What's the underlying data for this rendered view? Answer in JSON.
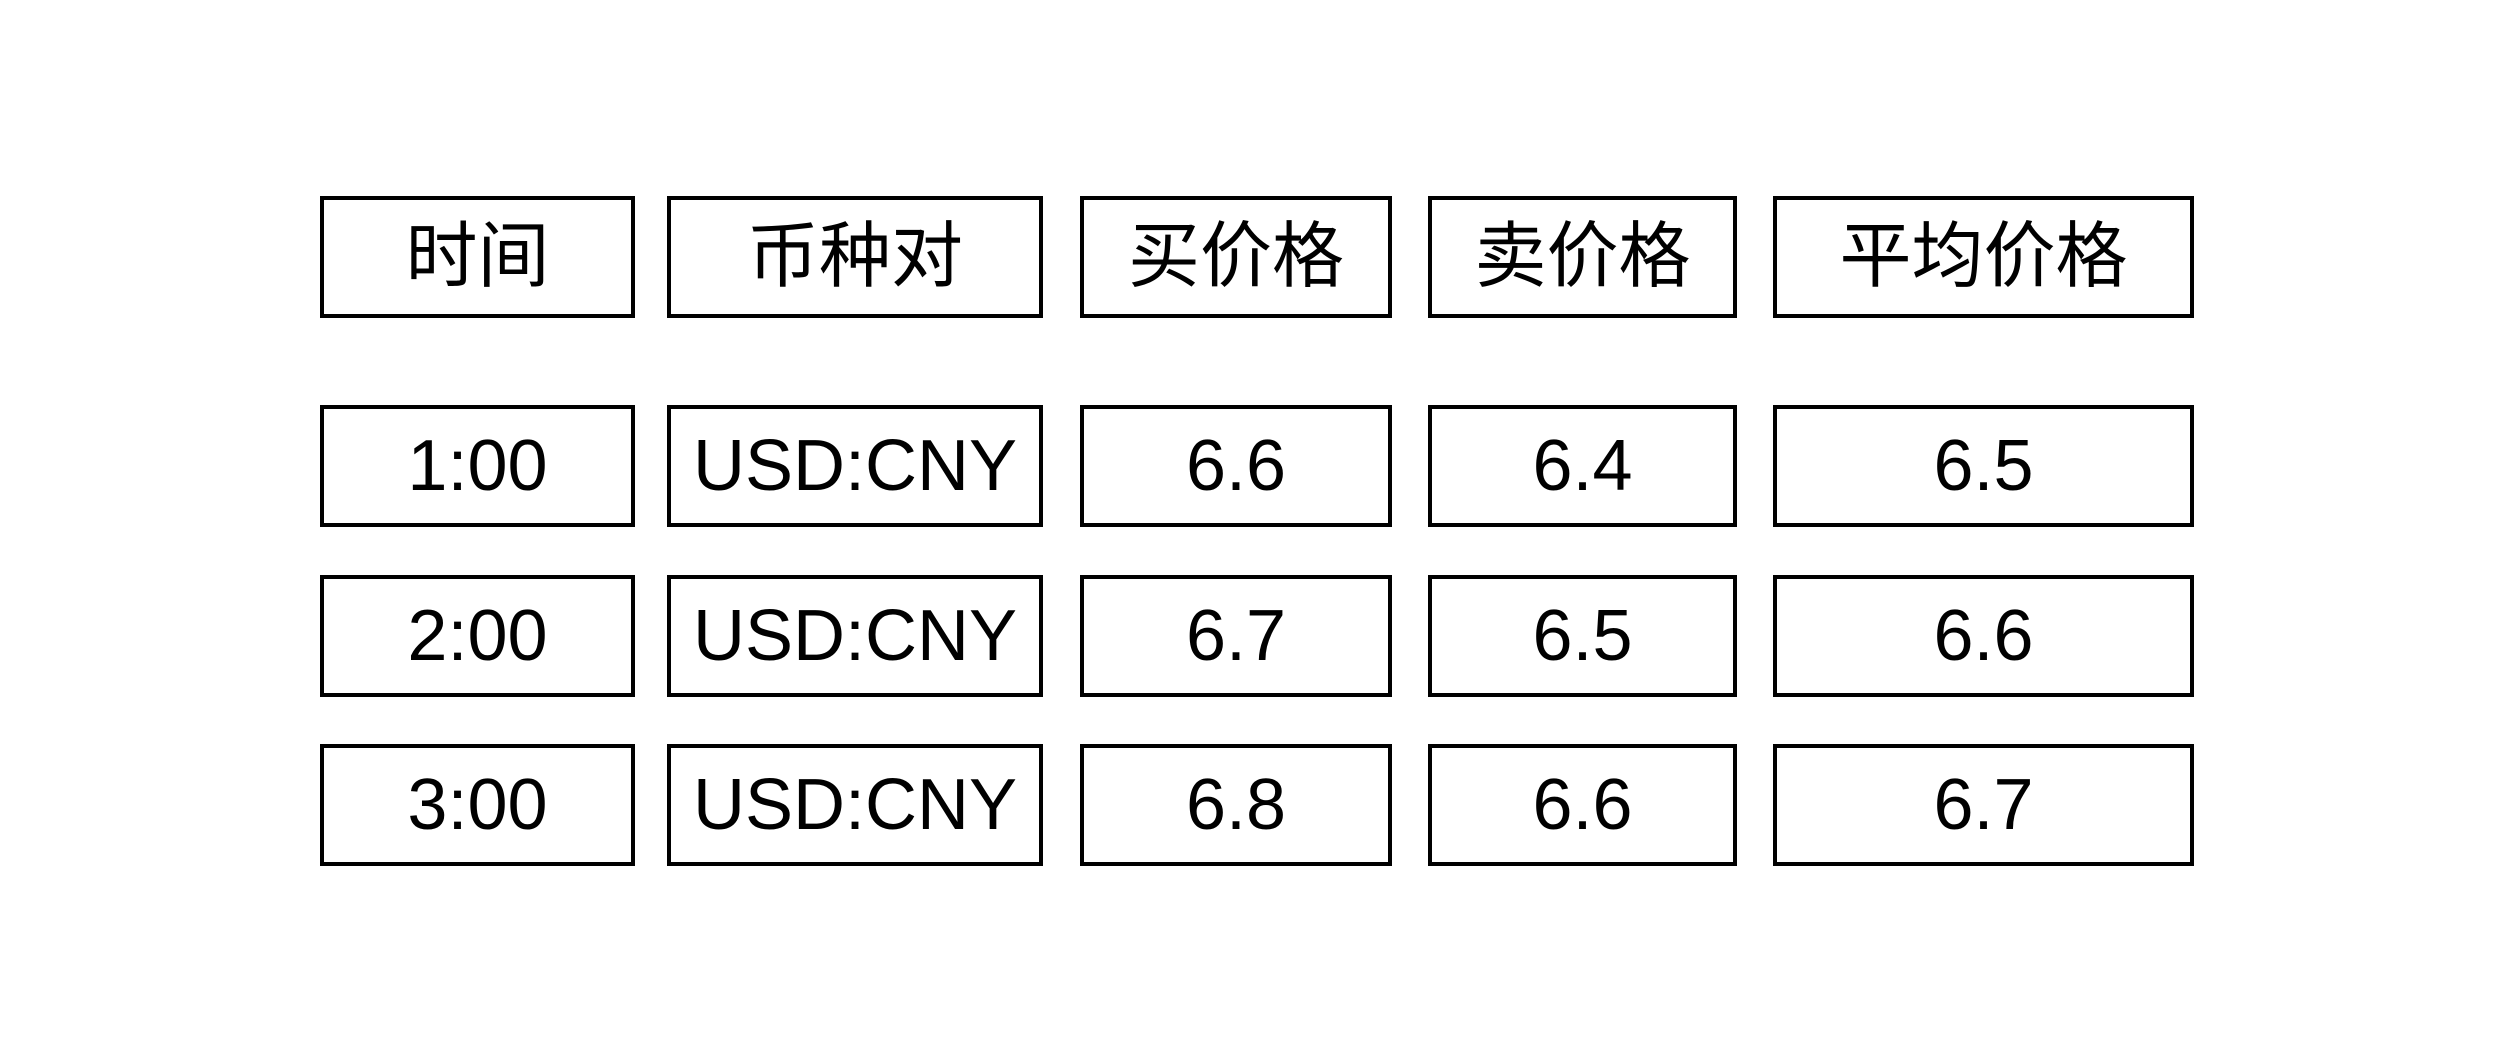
{
  "colors": {
    "background": "#ffffff",
    "box_border": "#000000",
    "text": "#000000"
  },
  "table": {
    "headers": [
      "时间",
      "币种对",
      "买价格",
      "卖价格",
      "平均价格"
    ],
    "rows": [
      {
        "cells": [
          "1:00",
          "USD:CNY",
          "6.6",
          "6.4",
          "6.5"
        ]
      },
      {
        "cells": [
          "2:00",
          "USD:CNY",
          "6.7",
          "6.5",
          "6.6"
        ]
      },
      {
        "cells": [
          "3:00",
          "USD:CNY",
          "6.8",
          "6.6",
          "6.7"
        ]
      }
    ]
  }
}
